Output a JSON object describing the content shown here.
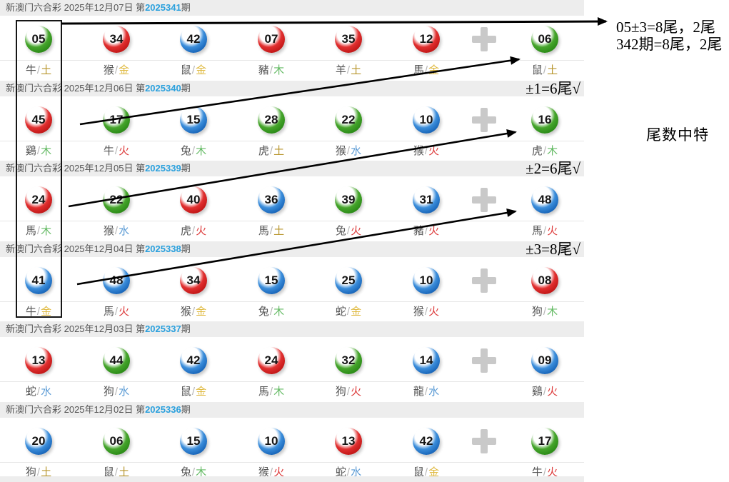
{
  "lottery": {
    "name": "新澳门六合彩",
    "period_prefix": "第",
    "period_suffix": "期"
  },
  "colors": {
    "header_band": "#ededed",
    "header_text": "#555555",
    "period_blue": "#2aa0dd",
    "ball_red": "#c31818",
    "ball_green": "#2c8c18",
    "ball_blue": "#1a67ba",
    "plus_gray": "#c9c9c9",
    "zodiac_text": "#555555",
    "element_金": "#dfb93f",
    "element_木": "#66bb66",
    "element_水": "#5b9bd5",
    "element_火": "#dd3c3c",
    "element_土": "#b8962e"
  },
  "annotations": {
    "top_line1": "05±3=8尾，2尾",
    "top_line2": "342期=8尾，2尾",
    "side_note": "尾数中特"
  },
  "draws": [
    {
      "date": "2025年12月07日",
      "period": "2025341",
      "note": "",
      "balls": [
        {
          "num": "05",
          "color": "green",
          "zodiac": "牛",
          "element": "土"
        },
        {
          "num": "34",
          "color": "red",
          "zodiac": "猴",
          "element": "金"
        },
        {
          "num": "42",
          "color": "blue",
          "zodiac": "鼠",
          "element": "金"
        },
        {
          "num": "07",
          "color": "red",
          "zodiac": "豬",
          "element": "木"
        },
        {
          "num": "35",
          "color": "red",
          "zodiac": "羊",
          "element": "土"
        },
        {
          "num": "12",
          "color": "red",
          "zodiac": "馬",
          "element": "金"
        }
      ],
      "special": {
        "num": "06",
        "color": "green",
        "zodiac": "鼠",
        "element": "土"
      }
    },
    {
      "date": "2025年12月06日",
      "period": "2025340",
      "note": "±1=6尾√",
      "balls": [
        {
          "num": "45",
          "color": "red",
          "zodiac": "鷄",
          "element": "木"
        },
        {
          "num": "17",
          "color": "green",
          "zodiac": "牛",
          "element": "火"
        },
        {
          "num": "15",
          "color": "blue",
          "zodiac": "兔",
          "element": "木"
        },
        {
          "num": "28",
          "color": "green",
          "zodiac": "虎",
          "element": "土"
        },
        {
          "num": "22",
          "color": "green",
          "zodiac": "猴",
          "element": "水"
        },
        {
          "num": "10",
          "color": "blue",
          "zodiac": "猴",
          "element": "火"
        }
      ],
      "special": {
        "num": "16",
        "color": "green",
        "zodiac": "虎",
        "element": "木"
      }
    },
    {
      "date": "2025年12月05日",
      "period": "2025339",
      "note": "±2=6尾√",
      "balls": [
        {
          "num": "24",
          "color": "red",
          "zodiac": "馬",
          "element": "木"
        },
        {
          "num": "22",
          "color": "green",
          "zodiac": "猴",
          "element": "水"
        },
        {
          "num": "40",
          "color": "red",
          "zodiac": "虎",
          "element": "火"
        },
        {
          "num": "36",
          "color": "blue",
          "zodiac": "馬",
          "element": "土"
        },
        {
          "num": "39",
          "color": "green",
          "zodiac": "兔",
          "element": "火"
        },
        {
          "num": "31",
          "color": "blue",
          "zodiac": "豬",
          "element": "火"
        }
      ],
      "special": {
        "num": "48",
        "color": "blue",
        "zodiac": "馬",
        "element": "火"
      }
    },
    {
      "date": "2025年12月04日",
      "period": "2025338",
      "note": "±3=8尾√",
      "balls": [
        {
          "num": "41",
          "color": "blue",
          "zodiac": "牛",
          "element": "金"
        },
        {
          "num": "48",
          "color": "blue",
          "zodiac": "馬",
          "element": "火"
        },
        {
          "num": "34",
          "color": "red",
          "zodiac": "猴",
          "element": "金"
        },
        {
          "num": "15",
          "color": "blue",
          "zodiac": "兔",
          "element": "木"
        },
        {
          "num": "25",
          "color": "blue",
          "zodiac": "蛇",
          "element": "金"
        },
        {
          "num": "10",
          "color": "blue",
          "zodiac": "猴",
          "element": "火"
        }
      ],
      "special": {
        "num": "08",
        "color": "red",
        "zodiac": "狗",
        "element": "木"
      }
    },
    {
      "date": "2025年12月03日",
      "period": "2025337",
      "note": "",
      "balls": [
        {
          "num": "13",
          "color": "red",
          "zodiac": "蛇",
          "element": "水"
        },
        {
          "num": "44",
          "color": "green",
          "zodiac": "狗",
          "element": "水"
        },
        {
          "num": "42",
          "color": "blue",
          "zodiac": "鼠",
          "element": "金"
        },
        {
          "num": "24",
          "color": "red",
          "zodiac": "馬",
          "element": "木"
        },
        {
          "num": "32",
          "color": "green",
          "zodiac": "狗",
          "element": "火"
        },
        {
          "num": "14",
          "color": "blue",
          "zodiac": "龍",
          "element": "水"
        }
      ],
      "special": {
        "num": "09",
        "color": "blue",
        "zodiac": "鷄",
        "element": "火"
      }
    },
    {
      "date": "2025年12月02日",
      "period": "2025336",
      "note": "",
      "balls": [
        {
          "num": "20",
          "color": "blue",
          "zodiac": "狗",
          "element": "土"
        },
        {
          "num": "06",
          "color": "green",
          "zodiac": "鼠",
          "element": "土"
        },
        {
          "num": "15",
          "color": "blue",
          "zodiac": "兔",
          "element": "木"
        },
        {
          "num": "10",
          "color": "blue",
          "zodiac": "猴",
          "element": "火"
        },
        {
          "num": "13",
          "color": "red",
          "zodiac": "蛇",
          "element": "水"
        },
        {
          "num": "42",
          "color": "blue",
          "zodiac": "鼠",
          "element": "金"
        }
      ],
      "special": {
        "num": "17",
        "color": "green",
        "zodiac": "牛",
        "element": "火"
      }
    }
  ]
}
